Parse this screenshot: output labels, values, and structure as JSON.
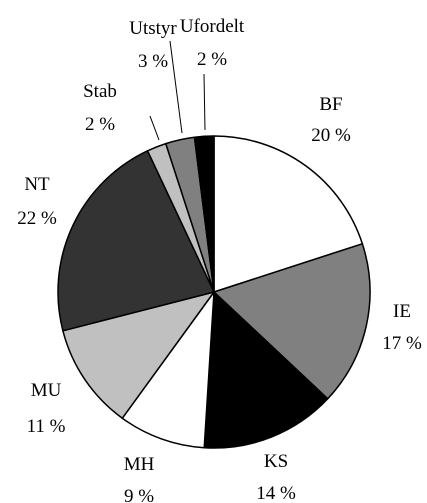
{
  "chart_data": {
    "type": "pie",
    "title": "",
    "start": "12 o'clock, clockwise",
    "slices": [
      {
        "name": "BF",
        "value": 20,
        "label": "20 %",
        "color": "#ffffff"
      },
      {
        "name": "IE",
        "value": 17,
        "label": "17 %",
        "color": "#808080"
      },
      {
        "name": "KS",
        "value": 14,
        "label": "14 %",
        "color": "#000000"
      },
      {
        "name": "MH",
        "value": 9,
        "label": "9 %",
        "color": "#ffffff"
      },
      {
        "name": "MU",
        "value": 11,
        "label": "11 %",
        "color": "#c0c0c0"
      },
      {
        "name": "NT",
        "value": 22,
        "label": "22 %",
        "color": "#333333"
      },
      {
        "name": "Stab",
        "value": 2,
        "label": "2 %",
        "color": "#c0c0c0"
      },
      {
        "name": "Utstyr",
        "value": 3,
        "label": "3 %",
        "color": "#808080"
      },
      {
        "name": "Ufordelt",
        "value": 2,
        "label": "2 %",
        "color": "#000000"
      }
    ]
  }
}
